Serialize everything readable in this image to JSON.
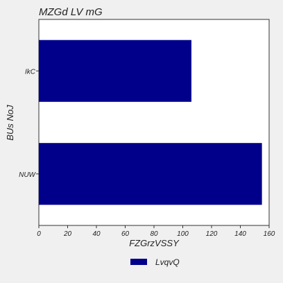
{
  "chart_data": {
    "type": "bar",
    "orientation": "horizontal",
    "title": "MZGd LV mG",
    "xlabel": "FZGrzVSSY",
    "ylabel": "BUs NoJ",
    "categories": [
      "IkC",
      "NUW"
    ],
    "series": [
      {
        "name": "LvqvQ",
        "values": [
          106,
          155
        ],
        "color": "#00008b"
      }
    ],
    "xlim": [
      0,
      160
    ],
    "xticks": [
      0,
      20,
      40,
      60,
      80,
      100,
      120,
      140,
      160
    ],
    "grid": false,
    "legend_position": "bottom-center"
  }
}
